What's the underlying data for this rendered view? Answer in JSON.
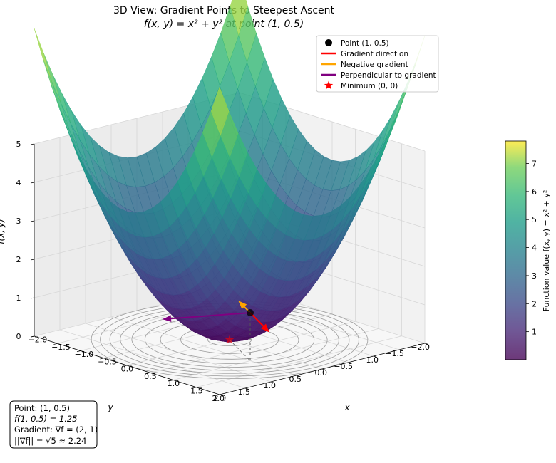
{
  "chart_data": {
    "type": "surface",
    "title": "3D View: Gradient Points to Steepest Ascent",
    "subtitle": "f(x, y) = x² + y² at point (1, 0.5)",
    "xlabel": "x",
    "ylabel": "y",
    "zlabel": "f(x, y)",
    "xlim": [
      -2,
      2
    ],
    "ylim": [
      -2,
      2
    ],
    "zlim": [
      0,
      5
    ],
    "x_ticks": [
      "−2.0",
      "−1.5",
      "−1.0",
      "−0.5",
      "0.0",
      "0.5",
      "1.0",
      "1.5",
      "2.0"
    ],
    "y_ticks": [
      "−2.0",
      "−1.5",
      "−1.0",
      "−0.5",
      "0.0",
      "0.5",
      "1.0",
      "1.5",
      "2.0"
    ],
    "z_ticks": [
      "0",
      "1",
      "2",
      "3",
      "4",
      "5"
    ],
    "surface": {
      "function": "x^2 + y^2",
      "colormap": "viridis",
      "range": [
        0,
        8
      ]
    },
    "contour_levels": [
      0.1,
      0.5,
      1,
      1.5,
      2,
      2.5,
      3,
      3.5,
      4
    ],
    "point": {
      "x": 1,
      "y": 0.5,
      "z": 1.25
    },
    "gradient": [
      2,
      1
    ],
    "gradient_magnitude": 2.24,
    "minimum": {
      "x": 0,
      "y": 0,
      "z": 0
    },
    "legend": {
      "position": "top-right",
      "entries": [
        {
          "label": "Point (1, 0.5)",
          "color": "#000000",
          "marker": "circle"
        },
        {
          "label": "Gradient direction",
          "color": "#ff0000",
          "marker": "line"
        },
        {
          "label": "Negative gradient",
          "color": "#ffa500",
          "marker": "line"
        },
        {
          "label": "Perpendicular to gradient",
          "color": "#800080",
          "marker": "line"
        },
        {
          "label": "Minimum (0, 0)",
          "color": "#ff0000",
          "marker": "star"
        }
      ]
    },
    "colorbar": {
      "label": "Function value f(x, y) = x² + y²",
      "ticks": [
        "1",
        "2",
        "3",
        "4",
        "5",
        "6",
        "7"
      ],
      "min": 0,
      "max": 7.8
    },
    "info_box": [
      "Point: (1, 0.5)",
      "f(1, 0.5) = 1.25",
      "Gradient: ∇f = (2, 1)",
      "||∇f|| = √5 ≈ 2.24"
    ]
  }
}
